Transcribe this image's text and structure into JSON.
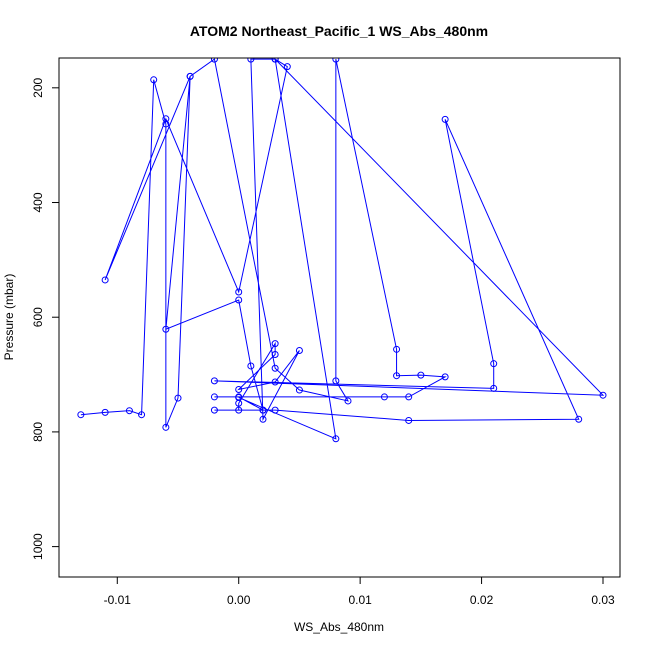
{
  "chart_data": {
    "type": "line",
    "title": "ATOM2 Northeast_Pacific_1 WS_Abs_480nm",
    "xlabel": "WS_Abs_480nm",
    "ylabel": "Pressure (mbar)",
    "xlim": [
      -0.0148,
      0.0314
    ],
    "ylim": [
      1053,
      148
    ],
    "y_inverted": true,
    "x_ticks": [
      -0.01,
      0.0,
      0.01,
      0.02,
      0.03
    ],
    "x_tick_labels": [
      "-0.01",
      "0.00",
      "0.01",
      "0.02",
      "0.03"
    ],
    "y_ticks": [
      200,
      400,
      600,
      800,
      1000
    ],
    "y_tick_labels": [
      "200",
      "400",
      "600",
      "800",
      "1000"
    ],
    "grid": false,
    "legend": "none",
    "colors": {
      "series": "#0000ff",
      "text": "#000000",
      "background": "#ffffff"
    },
    "series": [
      {
        "values": [
          [
            -0.013,
            770
          ],
          [
            -0.011,
            766
          ],
          [
            -0.009,
            763
          ],
          [
            -0.008,
            770
          ],
          [
            -0.007,
            186
          ],
          [
            -0.006,
            263
          ],
          [
            -0.006,
            792
          ],
          [
            -0.005,
            741
          ],
          [
            -0.004,
            180
          ],
          [
            -0.006,
            621
          ],
          [
            0.0,
            570
          ],
          [
            0.001,
            685
          ],
          [
            0.002,
            762
          ],
          [
            -0.002,
            762
          ],
          [
            0.0,
            762
          ],
          [
            0.0,
            750
          ],
          [
            0.003,
            646
          ],
          [
            0.003,
            665
          ],
          [
            0.0,
            726
          ],
          [
            0.003,
            713
          ],
          [
            0.005,
            658
          ],
          [
            0.002,
            778
          ],
          [
            0.001,
            150
          ],
          [
            0.003,
            150
          ],
          [
            0.004,
            163
          ],
          [
            0.0,
            556
          ],
          [
            -0.006,
            254
          ],
          [
            -0.011,
            535
          ],
          [
            -0.004,
            180
          ],
          [
            -0.002,
            150
          ],
          [
            0.003,
            689
          ],
          [
            0.005,
            727
          ],
          [
            0.009,
            746
          ],
          [
            0.008,
            711
          ],
          [
            0.008,
            150
          ],
          [
            0.013,
            656
          ],
          [
            0.013,
            702
          ],
          [
            0.015,
            701
          ],
          [
            0.017,
            704
          ],
          [
            0.014,
            739
          ],
          [
            0.012,
            739
          ],
          [
            -0.002,
            739
          ],
          [
            0.0,
            739
          ],
          [
            0.002,
            762
          ],
          [
            0.003,
            762
          ],
          [
            0.014,
            780
          ],
          [
            0.028,
            778
          ],
          [
            0.017,
            255
          ],
          [
            0.021,
            681
          ],
          [
            0.021,
            724
          ],
          [
            -0.002,
            711
          ],
          [
            0.03,
            736
          ],
          [
            0.003,
            150
          ],
          [
            0.008,
            812
          ],
          [
            0.0,
            740
          ]
        ]
      }
    ]
  }
}
